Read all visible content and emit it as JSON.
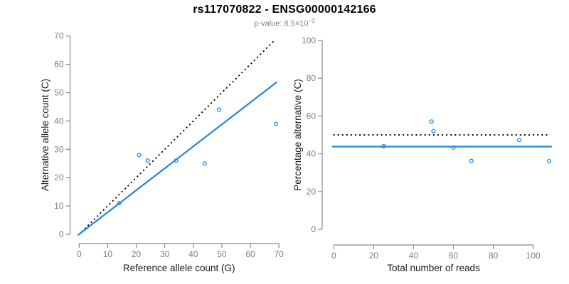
{
  "header": {
    "title": "rs117070822 - ENSG00000142166",
    "pvalue_text": "p-value: 8.5×10",
    "pvalue_exponent": "−3"
  },
  "colors": {
    "accent_blue": "#1F86E0",
    "reference_line_black": "#000000",
    "tick_label_gray": "#7d7d7d",
    "axis_gray": "#8a8a8a",
    "axis_title_color": "#1a1a1a",
    "subtitle_gray": "#7d7d7d"
  },
  "chart_data": [
    {
      "type": "scatter",
      "name": "allele-counts-scatter",
      "xlabel": "Reference allele count (G)",
      "ylabel": "Alternative allele count (C)",
      "xlim": [
        0,
        70
      ],
      "ylim": [
        0,
        70
      ],
      "xticks": [
        0,
        10,
        20,
        30,
        40,
        50,
        60,
        70
      ],
      "yticks": [
        0,
        10,
        20,
        30,
        40,
        50,
        60,
        70
      ],
      "grid": false,
      "legend": "none",
      "point_color": "#1F86E0",
      "points": [
        [
          14,
          11
        ],
        [
          21,
          28
        ],
        [
          24,
          26
        ],
        [
          34,
          26
        ],
        [
          44,
          25
        ],
        [
          49,
          44
        ],
        [
          69,
          39
        ]
      ],
      "lines": [
        {
          "name": "identity-line",
          "style": "dotted",
          "color": "#000000",
          "from": [
            1,
            1
          ],
          "to": [
            68.5,
            68.5
          ]
        },
        {
          "name": "regression-line",
          "style": "solid",
          "color": "#1F86E0",
          "from": [
            -0.3,
            -0.2
          ],
          "to": [
            69.1,
            53.6
          ]
        }
      ]
    },
    {
      "type": "scatter",
      "name": "percentage-vs-coverage-scatter",
      "xlabel": "Total number of reads",
      "ylabel": "Percentage alternative (C)",
      "xlim": [
        0,
        109
      ],
      "ylim": [
        0,
        100
      ],
      "xticks": [
        0,
        20,
        40,
        60,
        80,
        100
      ],
      "yticks": [
        0,
        20,
        40,
        60,
        80,
        100
      ],
      "grid": false,
      "legend": "none",
      "point_color": "#1F86E0",
      "points": [
        [
          25,
          44.0
        ],
        [
          49,
          57.1
        ],
        [
          50,
          52.0
        ],
        [
          60,
          43.3
        ],
        [
          69,
          36.2
        ],
        [
          93,
          47.3
        ],
        [
          108,
          36.1
        ]
      ],
      "lines": [
        {
          "name": "expected-50-percent-line",
          "style": "dotted",
          "color": "#000000",
          "from": [
            0,
            50
          ],
          "to": [
            107,
            50
          ]
        },
        {
          "name": "mean-percentage-line",
          "style": "solid",
          "color": "#1F86E0",
          "from": [
            -0.5,
            43.8
          ],
          "to": [
            109,
            43.8
          ]
        }
      ]
    }
  ]
}
